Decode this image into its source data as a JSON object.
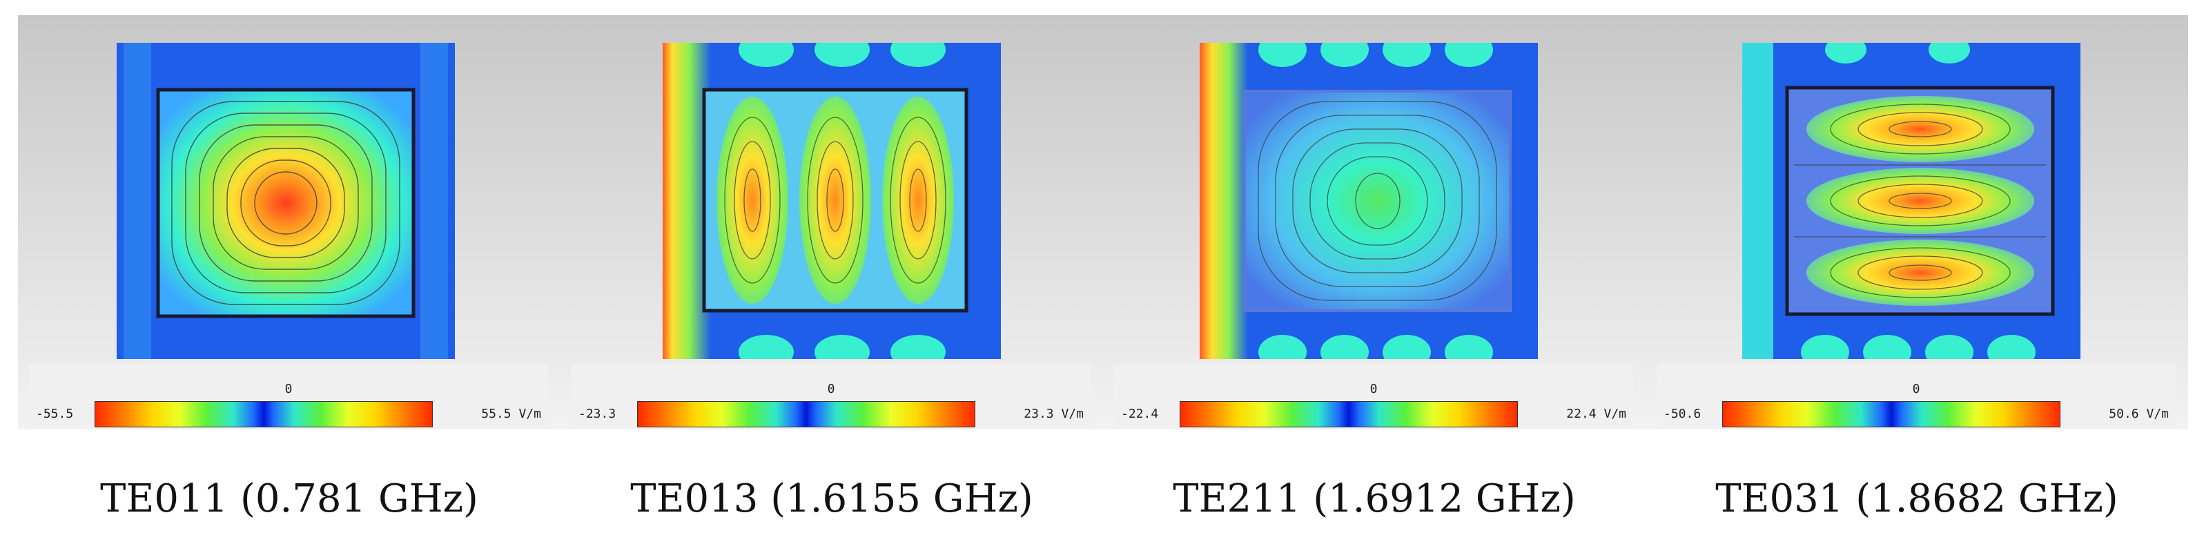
{
  "modes": [
    {
      "caption": "TE011 (0.781 GHz)",
      "colorbar": {
        "min": "-55.5",
        "mid": "0",
        "max": "55.5 V/m"
      }
    },
    {
      "caption": "TE013 (1.6155 GHz)",
      "colorbar": {
        "min": "-23.3",
        "mid": "0",
        "max": "23.3 V/m"
      }
    },
    {
      "caption": "TE211 (1.6912 GHz)",
      "colorbar": {
        "min": "-22.4",
        "mid": "0",
        "max": "22.4 V/m"
      }
    },
    {
      "caption": "TE031 (1.8682 GHz)",
      "colorbar": {
        "min": "-50.6",
        "mid": "0",
        "max": "50.6 V/m"
      }
    }
  ],
  "colors": {
    "outer_field": "#1e5ee8",
    "cavity_edge": "#1a1a2e",
    "hot": "#ff3c1e",
    "warm": "#ffe030",
    "mid": "#38f0d0"
  }
}
